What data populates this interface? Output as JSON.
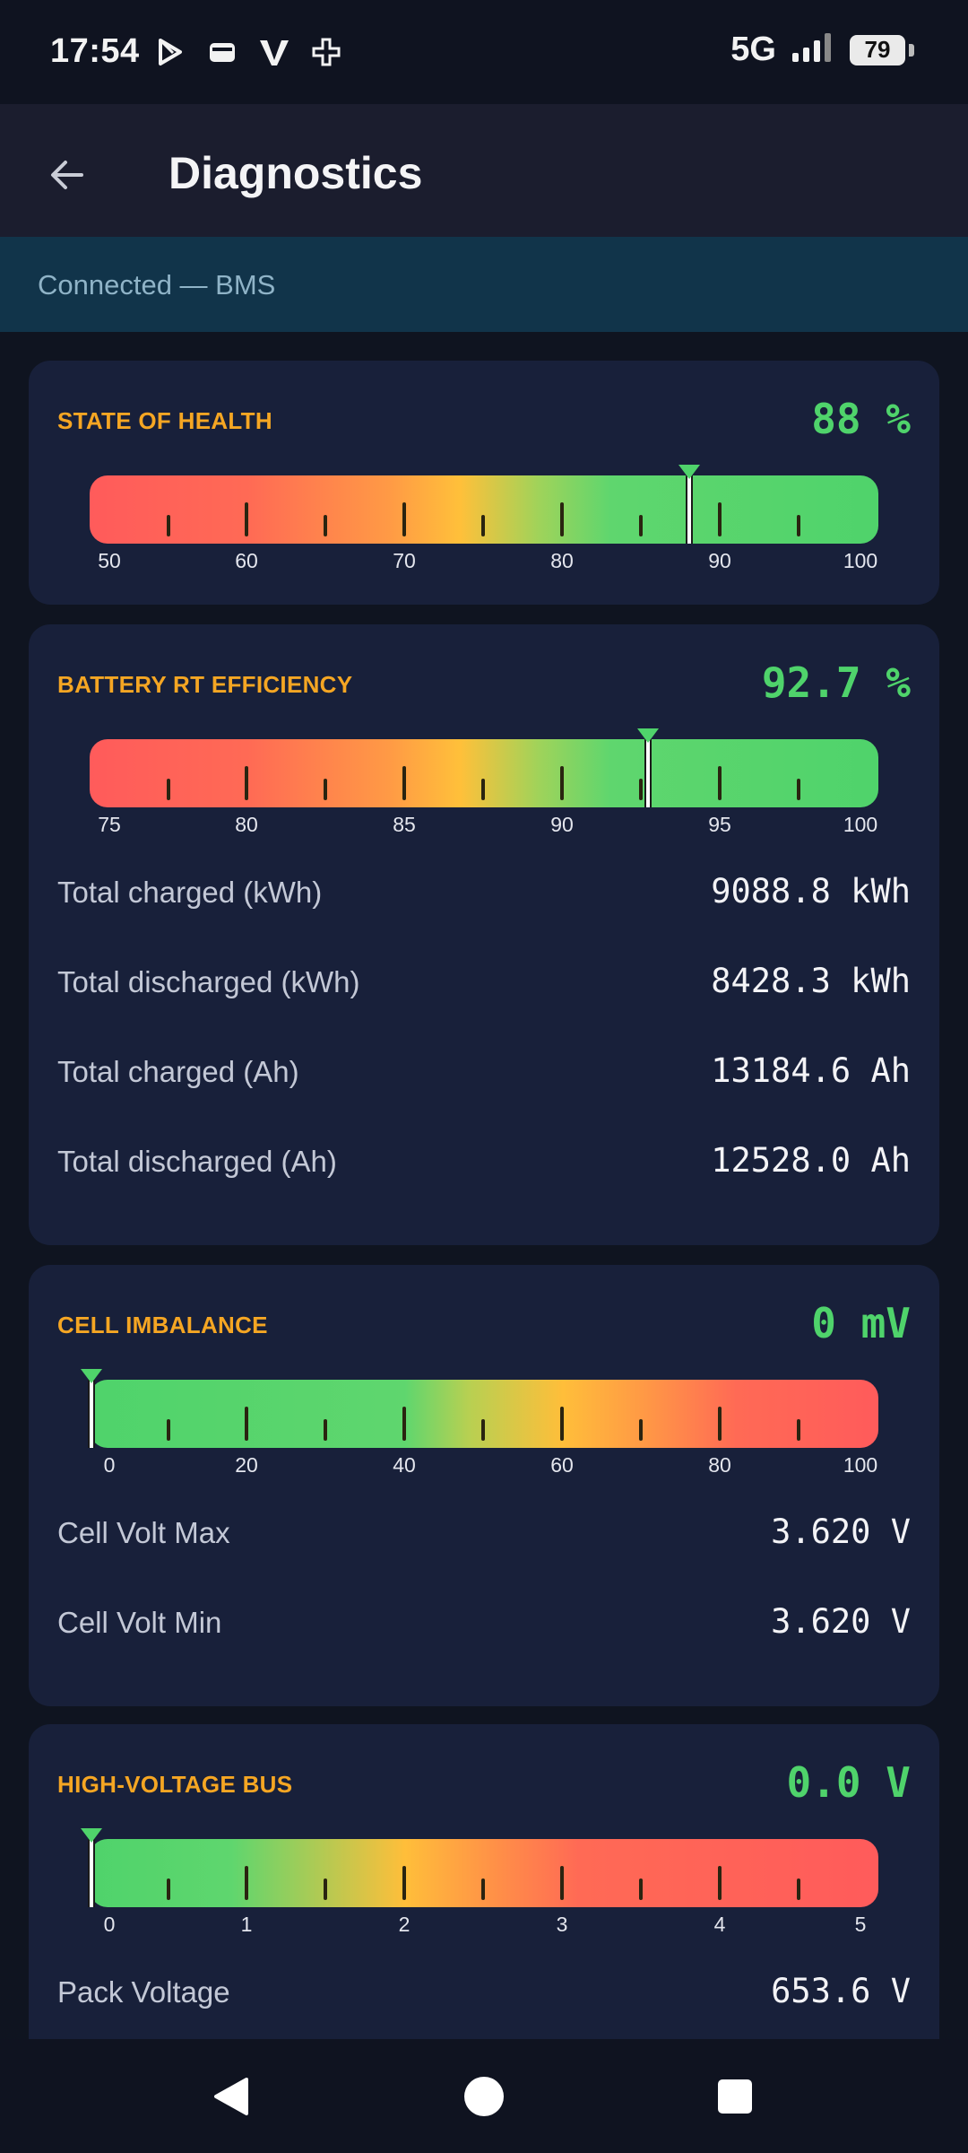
{
  "status_bar": {
    "time": "17:54",
    "network": "5G",
    "battery": "79",
    "icons": [
      "play-store-icon",
      "wallet-icon",
      "v-app-icon",
      "plus-app-icon",
      "signal-icon",
      "battery-icon"
    ]
  },
  "app_bar": {
    "title": "Diagnostics",
    "back_icon": "arrow-left-icon"
  },
  "connection": {
    "text": "Connected — BMS"
  },
  "cards": {
    "soh": {
      "title": "STATE OF HEALTH",
      "value": "88 %",
      "gauge": {
        "min": 50,
        "max": 100,
        "value": 88,
        "labels": [
          "50",
          "60",
          "70",
          "80",
          "90",
          "100"
        ],
        "palette": "red-to-green"
      }
    },
    "efficiency": {
      "title": "BATTERY RT EFFICIENCY",
      "value": "92.7 %",
      "gauge": {
        "min": 75,
        "max": 100,
        "value": 92.7,
        "labels": [
          "75",
          "80",
          "85",
          "90",
          "95",
          "100"
        ],
        "palette": "red-to-green"
      },
      "rows": [
        {
          "label": "Total charged (kWh)",
          "value": "9088.8 kWh"
        },
        {
          "label": "Total discharged (kWh)",
          "value": "8428.3 kWh"
        },
        {
          "label": "Total charged (Ah)",
          "value": "13184.6 Ah"
        },
        {
          "label": "Total discharged (Ah)",
          "value": "12528.0 Ah"
        }
      ]
    },
    "imbalance": {
      "title": "CELL IMBALANCE",
      "value": "0 mV",
      "gauge": {
        "min": 0,
        "max": 100,
        "value": 0,
        "labels": [
          "0",
          "20",
          "40",
          "60",
          "80",
          "100"
        ],
        "palette": "green-to-red"
      },
      "rows": [
        {
          "label": "Cell Volt Max",
          "value": "3.620 V"
        },
        {
          "label": "Cell Volt Min",
          "value": "3.620 V"
        }
      ]
    },
    "hv_bus": {
      "title": "HIGH-VOLTAGE BUS",
      "value": "0.0 V",
      "gauge": {
        "min": 0,
        "max": 5,
        "value": 0,
        "labels": [
          "0",
          "1",
          "2",
          "3",
          "4",
          "5"
        ],
        "palette": "green-to-red-fast"
      },
      "rows": [
        {
          "label": "Pack Voltage",
          "value": "653.6 V"
        }
      ]
    }
  },
  "colors": {
    "accent_orange": "#f5a623",
    "value_green": "#4fd36b",
    "card_bg": "#18203a",
    "page_bg": "#0f1420",
    "connection_bg": "#11344a"
  },
  "nav_bar": {
    "icons": [
      "nav-back-icon",
      "nav-home-icon",
      "nav-recents-icon"
    ]
  }
}
